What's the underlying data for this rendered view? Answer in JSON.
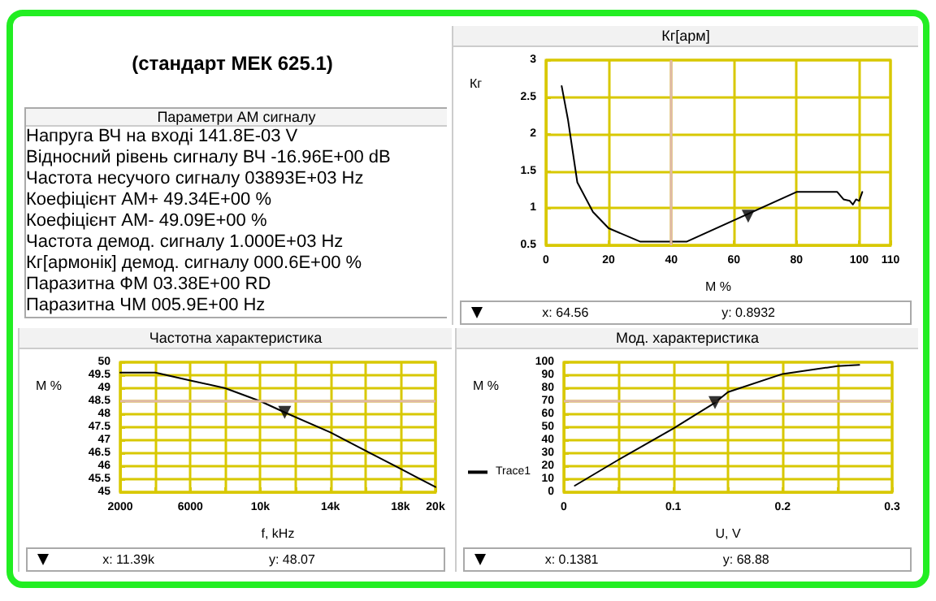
{
  "chart_data": [
    {
      "type": "other",
      "title": "(стандарт МЕК 625.1)",
      "subtitle": "Параметри АМ сигналу",
      "annotations": [
        "Напруга ВЧ на вході  141.8E-03 V",
        "Відносний рівень сигналу ВЧ -16.96E+00 dB",
        "Частота несучого сигналу  03893E+03 Hz",
        "Коефіцієнт АМ+  49.34E+00 %",
        "Коефіцієнт АМ-  49.09E+00 %",
        "Частота демод. сигналу  1.000E+03 Hz",
        "Кг[армонік] демод. сигналу  000.6E+00 %",
        "Паразитна ФМ   03.38E+00 RD",
        "Паразитна ЧМ  005.9E+00 Hz"
      ]
    },
    {
      "type": "line",
      "title": "Кг[арм]",
      "xlabel": "М %",
      "ylabel": "Кг",
      "xlim": [
        0,
        110
      ],
      "xticks": [
        0,
        20,
        40,
        60,
        80,
        100,
        110
      ],
      "ylim": [
        0.5,
        3
      ],
      "yticks": [
        0.5,
        1,
        1.5,
        2,
        2.5,
        3
      ],
      "grid": true,
      "legend": false,
      "ref_lines": [
        {
          "axis": "x",
          "value": 40,
          "color": "#e0b8a8"
        }
      ],
      "series": [
        {
          "color": "#000000",
          "x": [
            5,
            7,
            10,
            15,
            20,
            30,
            45,
            80,
            93,
            95,
            97,
            98,
            99,
            100,
            101
          ],
          "values": [
            2.65,
            2.2,
            1.35,
            0.95,
            0.73,
            0.55,
            0.55,
            1.22,
            1.22,
            1.12,
            1.1,
            1.05,
            1.12,
            1.1,
            1.22
          ]
        },
        {
          "type": "scatter",
          "marker": "triangle",
          "color": "#000000",
          "x": [
            64.56
          ],
          "values": [
            0.8932
          ]
        }
      ],
      "annotations": [
        "x: 64.56",
        "y: 0.8932"
      ]
    },
    {
      "type": "line",
      "title": "Частотна характеристика",
      "xlabel": "f, kHz",
      "ylabel": "М %",
      "xlim": [
        2000,
        20000
      ],
      "xticks": [
        2000,
        {
          "value": 4000,
          "label": null
        },
        6000,
        {
          "value": 8000,
          "label": null
        },
        {
          "value": 10000,
          "label": "10k"
        },
        {
          "value": 12000,
          "label": null
        },
        {
          "value": 14000,
          "label": "14k"
        },
        {
          "value": 16000,
          "label": null
        },
        {
          "value": 18000,
          "label": "18k"
        },
        {
          "value": 20000,
          "label": "20k"
        }
      ],
      "ylim": [
        45,
        50
      ],
      "yticks": [
        45,
        45.5,
        46,
        46.5,
        47,
        47.5,
        48,
        48.5,
        49,
        49.5,
        50
      ],
      "grid": true,
      "legend": false,
      "ref_lines": [
        {
          "axis": "y",
          "value": 48.5,
          "color": "#e0b8a8"
        }
      ],
      "series": [
        {
          "color": "#000000",
          "x": [
            2000,
            3000,
            4000,
            6000,
            8000,
            10000,
            11390,
            14000,
            16000,
            18000,
            20000
          ],
          "values": [
            49.6,
            49.6,
            49.6,
            49.3,
            49,
            48.5,
            48.07,
            47.3,
            46.6,
            45.9,
            45.2
          ]
        },
        {
          "type": "scatter",
          "marker": "triangle",
          "color": "#000000",
          "x": [
            11390
          ],
          "values": [
            48.07
          ]
        }
      ],
      "annotations": [
        "x: 11.39k",
        "y: 48.07"
      ]
    },
    {
      "type": "line",
      "title": "Мод. характеристика",
      "xlabel": "U, V",
      "ylabel": "М %",
      "xlim": [
        0,
        0.3
      ],
      "xticks": [
        0,
        {
          "value": 0.05,
          "label": null
        },
        0.1,
        {
          "value": 0.15,
          "label": null
        },
        0.2,
        {
          "value": 0.25,
          "label": null
        },
        0.3
      ],
      "ylim": [
        0,
        100
      ],
      "yticks": [
        0,
        10,
        20,
        30,
        40,
        50,
        60,
        70,
        80,
        90,
        100
      ],
      "grid": true,
      "legend": "left",
      "ref_lines": [
        {
          "axis": "y",
          "value": 70,
          "color": "#e0b8a8"
        }
      ],
      "series": [
        {
          "name": "Trace1",
          "color": "#000000",
          "x": [
            0.01,
            0.05,
            0.1,
            0.1381,
            0.15,
            0.2,
            0.25,
            0.27
          ],
          "values": [
            5,
            25,
            49,
            68.88,
            77,
            91,
            97,
            98
          ]
        },
        {
          "type": "scatter",
          "marker": "triangle",
          "color": "#000000",
          "x": [
            0.1381
          ],
          "values": [
            68.88
          ]
        }
      ],
      "annotations": [
        "x: 0.1381",
        "y: 68.88"
      ]
    }
  ]
}
